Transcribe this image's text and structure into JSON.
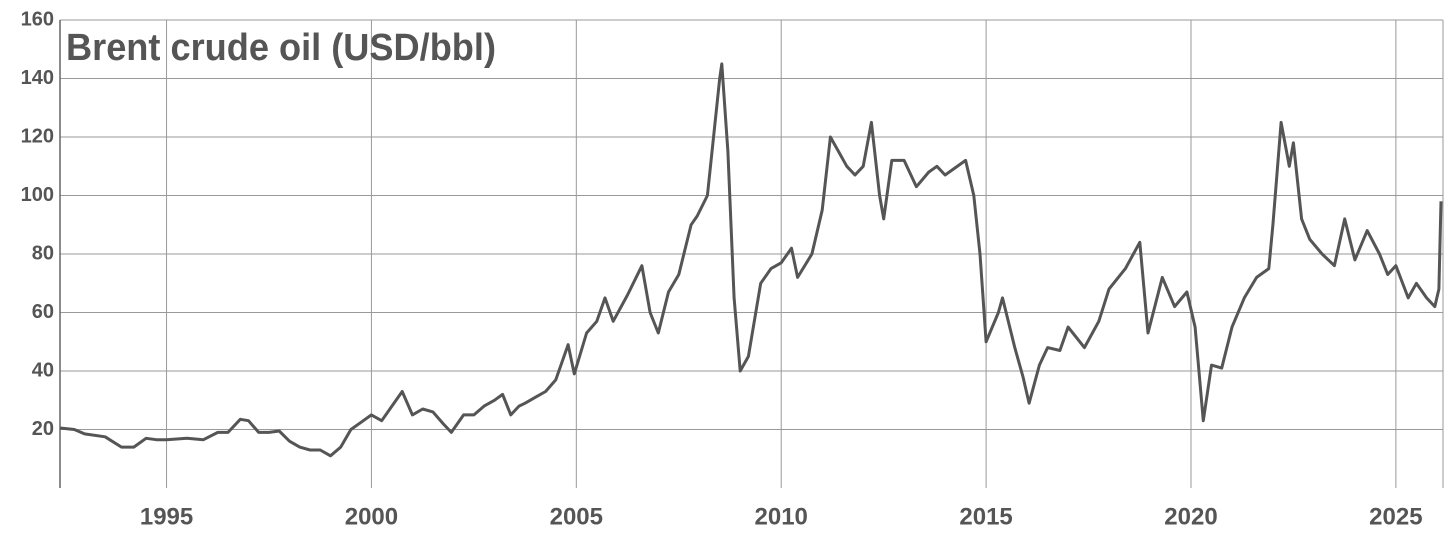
{
  "chart_data": {
    "type": "line",
    "title": "Brent crude oil (USD/bbl)",
    "xlim": [
      1992.4,
      2026.15
    ],
    "xticks": [
      1995,
      2000,
      2005,
      2010,
      2015,
      2020,
      2025
    ],
    "ylim": [
      0,
      160
    ],
    "yticks": [
      20,
      40,
      60,
      80,
      100,
      120,
      140,
      160
    ],
    "grid": true,
    "x": [
      1992.4,
      1992.75,
      1993.0,
      1993.5,
      1993.9,
      1994.2,
      1994.5,
      1994.75,
      1995.0,
      1995.5,
      1995.9,
      1996.25,
      1996.5,
      1996.8,
      1997.0,
      1997.25,
      1997.5,
      1997.75,
      1998.0,
      1998.25,
      1998.5,
      1998.75,
      1999.0,
      1999.25,
      1999.5,
      1999.75,
      2000.0,
      2000.25,
      2000.5,
      2000.75,
      2001.0,
      2001.25,
      2001.5,
      2001.75,
      2001.95,
      2002.25,
      2002.5,
      2002.75,
      2003.0,
      2003.2,
      2003.4,
      2003.6,
      2003.75,
      2004.0,
      2004.25,
      2004.5,
      2004.8,
      2004.95,
      2005.25,
      2005.5,
      2005.7,
      2005.9,
      2006.25,
      2006.6,
      2006.8,
      2007.0,
      2007.25,
      2007.5,
      2007.8,
      2007.95,
      2008.2,
      2008.5,
      2008.55,
      2008.7,
      2008.85,
      2009.0,
      2009.2,
      2009.5,
      2009.75,
      2010.0,
      2010.25,
      2010.4,
      2010.75,
      2011.0,
      2011.2,
      2011.4,
      2011.6,
      2011.8,
      2012.0,
      2012.2,
      2012.4,
      2012.5,
      2012.7,
      2013.0,
      2013.3,
      2013.6,
      2013.8,
      2014.0,
      2014.5,
      2014.7,
      2014.85,
      2015.0,
      2015.3,
      2015.4,
      2015.7,
      2015.9,
      2016.05,
      2016.3,
      2016.5,
      2016.8,
      2017.0,
      2017.4,
      2017.75,
      2018.0,
      2018.4,
      2018.75,
      2018.95,
      2019.3,
      2019.6,
      2019.9,
      2020.1,
      2020.3,
      2020.5,
      2020.75,
      2021.0,
      2021.3,
      2021.6,
      2021.9,
      2022.0,
      2022.2,
      2022.4,
      2022.5,
      2022.7,
      2022.9,
      2023.2,
      2023.5,
      2023.75,
      2024.0,
      2024.3,
      2024.6,
      2024.8,
      2025.0,
      2025.3,
      2025.5,
      2025.75,
      2025.95,
      2026.05,
      2026.1
    ],
    "series": [
      {
        "color": "#555555",
        "values": [
          20.5,
          20,
          18.5,
          17.5,
          14,
          14,
          17,
          16.5,
          16.5,
          17,
          16.5,
          19,
          19,
          23.5,
          23,
          19,
          19,
          19.5,
          16,
          14,
          13,
          13,
          11,
          14,
          20,
          22.5,
          25,
          23,
          28,
          33,
          25,
          27,
          26,
          22,
          19,
          25,
          25,
          28,
          30,
          32,
          25,
          28,
          29,
          31,
          33,
          37,
          49,
          39,
          53,
          57,
          65,
          57,
          66,
          76,
          60,
          53,
          67,
          73,
          90,
          93,
          100,
          140,
          145,
          115,
          65,
          40,
          45,
          70,
          75,
          77,
          82,
          72,
          80,
          95,
          120,
          115,
          110,
          107,
          110,
          125,
          100,
          92,
          112,
          112,
          103,
          108,
          110,
          107,
          112,
          100,
          80,
          50,
          60,
          65,
          48,
          38,
          29,
          42,
          48,
          47,
          55,
          48,
          57,
          68,
          75,
          84,
          53,
          72,
          62,
          67,
          55,
          23,
          42,
          41,
          55,
          65,
          72,
          75,
          90,
          125,
          110,
          118,
          92,
          85,
          80,
          76,
          92,
          78,
          88,
          80,
          73,
          76,
          65,
          70,
          65,
          62,
          68,
          98
        ]
      }
    ]
  }
}
